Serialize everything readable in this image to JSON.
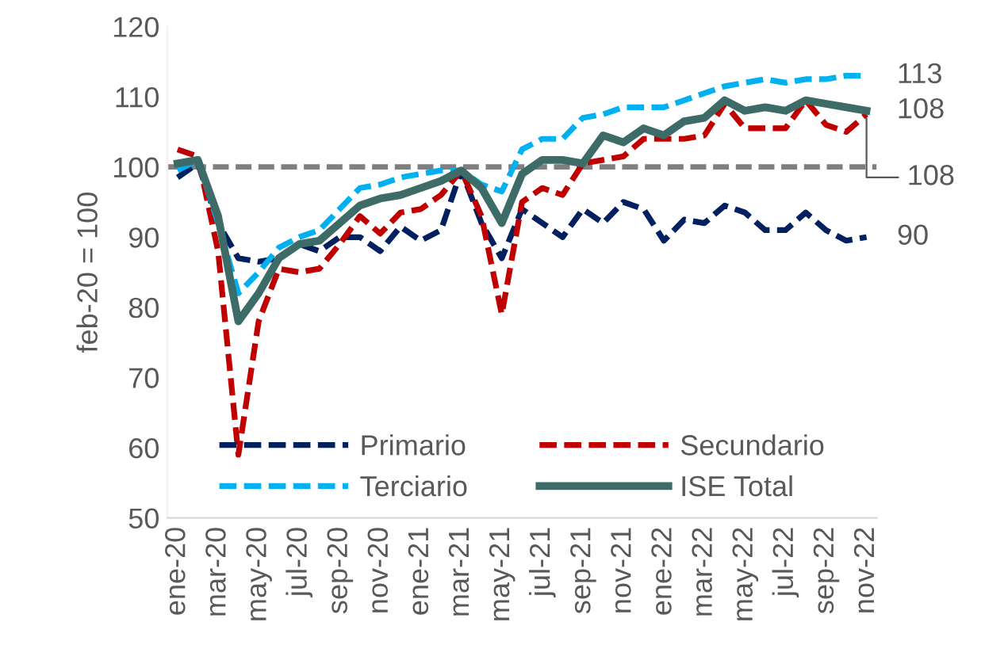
{
  "chart_data": {
    "type": "line",
    "ylabel": "feb-20 = 100",
    "categories": [
      "ene-20",
      null,
      "mar-20",
      null,
      "may-20",
      null,
      "jul-20",
      null,
      "sep-20",
      null,
      "nov-20",
      null,
      "ene-21",
      null,
      "mar-21",
      null,
      "may-21",
      null,
      "jul-21",
      null,
      "sep-21",
      null,
      "nov-21",
      null,
      "ene-22",
      null,
      "mar-22",
      null,
      "may-22",
      null,
      "jul-22",
      null,
      "sep-22",
      null,
      "nov-22"
    ],
    "ylim": [
      50,
      120
    ],
    "yticks": [
      50,
      60,
      70,
      80,
      90,
      100,
      110,
      120
    ],
    "grid": false,
    "legend": "bottom",
    "series": [
      {
        "name": "Primario",
        "color": "#002060",
        "line_style": "dashed",
        "values": [
          98.5,
          100.5,
          92,
          87,
          86.5,
          87,
          89,
          88,
          90,
          90,
          88,
          91.5,
          89.5,
          91,
          99.5,
          92,
          87,
          94,
          92,
          90,
          94,
          92,
          95,
          94,
          89.5,
          92.5,
          92,
          94.5,
          93.5,
          91,
          91,
          93.5,
          91,
          89.5,
          90
        ]
      },
      {
        "name": "Secundario",
        "color": "#c00000",
        "line_style": "dashed",
        "values": [
          102.5,
          101.5,
          88,
          59,
          78,
          85.5,
          85,
          85.5,
          89,
          93,
          90.5,
          93.5,
          94,
          96,
          99.5,
          93,
          79,
          95,
          97,
          96,
          100.5,
          101,
          101.5,
          104,
          104,
          104,
          104.5,
          109,
          105.5,
          105.5,
          105.5,
          109.5,
          106,
          105,
          107.5
        ]
      },
      {
        "name": "Terciario",
        "color": "#00b0f0",
        "line_style": "dashed",
        "values": [
          99.5,
          101,
          92,
          82,
          85,
          88.5,
          90,
          91,
          94,
          97,
          97.5,
          98.5,
          99,
          99.5,
          99.5,
          97.5,
          96.5,
          102.5,
          104,
          104,
          107,
          107.5,
          108.5,
          108.5,
          108.5,
          109.5,
          110.5,
          111.5,
          112,
          112.5,
          112,
          112.5,
          112.5,
          113,
          113
        ]
      },
      {
        "name": "ISE Total",
        "color": "#3d6b67",
        "line_style": "solid",
        "values": [
          100.5,
          101,
          93,
          78,
          82,
          87,
          89,
          89.5,
          92,
          94.5,
          95.5,
          96,
          97,
          98,
          99.5,
          97,
          92,
          99,
          101,
          101,
          100.5,
          104.5,
          103.5,
          105.5,
          104.5,
          106.5,
          107,
          109.5,
          108,
          108.5,
          108,
          109.5,
          109,
          108.5,
          108
        ]
      }
    ],
    "ref_lines": [
      {
        "axis": "y",
        "value": 100,
        "color": "#7f7f7f",
        "line_style": "dashed"
      }
    ],
    "annotations": [
      {
        "text": "113",
        "x": "nov-22",
        "y": 113
      },
      {
        "text": "108",
        "x": "nov-22",
        "y": 108
      },
      {
        "text": "108",
        "x": "nov-22",
        "y": 107.5
      },
      {
        "text": "90",
        "x": "nov-22",
        "y": 90
      }
    ]
  }
}
